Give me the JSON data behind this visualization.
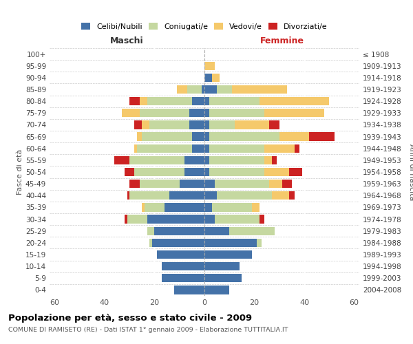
{
  "age_groups": [
    "0-4",
    "5-9",
    "10-14",
    "15-19",
    "20-24",
    "25-29",
    "30-34",
    "35-39",
    "40-44",
    "45-49",
    "50-54",
    "55-59",
    "60-64",
    "65-69",
    "70-74",
    "75-79",
    "80-84",
    "85-89",
    "90-94",
    "95-99",
    "100+"
  ],
  "birth_years": [
    "2004-2008",
    "1999-2003",
    "1994-1998",
    "1989-1993",
    "1984-1988",
    "1979-1983",
    "1974-1978",
    "1969-1973",
    "1964-1968",
    "1959-1963",
    "1954-1958",
    "1949-1953",
    "1944-1948",
    "1939-1943",
    "1934-1938",
    "1929-1933",
    "1924-1928",
    "1919-1923",
    "1914-1918",
    "1909-1913",
    "≤ 1908"
  ],
  "maschi_celibi": [
    12,
    17,
    17,
    19,
    21,
    20,
    23,
    16,
    14,
    10,
    8,
    8,
    5,
    5,
    6,
    6,
    5,
    1,
    0,
    0,
    0
  ],
  "maschi_coniugati": [
    0,
    0,
    0,
    0,
    1,
    3,
    8,
    8,
    16,
    16,
    20,
    22,
    22,
    20,
    16,
    20,
    18,
    6,
    0,
    0,
    0
  ],
  "maschi_vedovi": [
    0,
    0,
    0,
    0,
    0,
    0,
    0,
    1,
    0,
    0,
    0,
    0,
    1,
    2,
    3,
    7,
    3,
    4,
    0,
    0,
    0
  ],
  "maschi_divorziati": [
    0,
    0,
    0,
    0,
    0,
    0,
    1,
    0,
    1,
    4,
    4,
    6,
    0,
    0,
    3,
    0,
    4,
    0,
    0,
    0,
    0
  ],
  "femmine_nubili": [
    10,
    15,
    14,
    19,
    21,
    10,
    4,
    3,
    5,
    4,
    2,
    2,
    2,
    2,
    2,
    2,
    2,
    5,
    3,
    0,
    0
  ],
  "femmine_coniugate": [
    0,
    0,
    0,
    0,
    2,
    18,
    18,
    16,
    22,
    22,
    22,
    22,
    22,
    28,
    10,
    22,
    20,
    6,
    0,
    0,
    0
  ],
  "femmine_vedove": [
    0,
    0,
    0,
    0,
    0,
    0,
    0,
    3,
    7,
    5,
    10,
    3,
    12,
    12,
    14,
    24,
    28,
    22,
    3,
    4,
    0
  ],
  "femmine_divorziate": [
    0,
    0,
    0,
    0,
    0,
    0,
    2,
    0,
    2,
    4,
    5,
    2,
    2,
    10,
    4,
    0,
    0,
    0,
    0,
    0,
    0
  ],
  "color_celibi": "#4472a8",
  "color_coniugati": "#c5d8a0",
  "color_vedovi": "#f5c96b",
  "color_divorziati": "#cc2222",
  "xlim": 62,
  "xticks": [
    -60,
    -40,
    -20,
    0,
    20,
    40,
    60
  ],
  "title": "Popolazione per età, sesso e stato civile - 2009",
  "subtitle": "COMUNE DI RAMISETO (RE) - Dati ISTAT 1° gennaio 2009 - Elaborazione TUTTITALIA.IT",
  "label_maschi": "Maschi",
  "label_femmine": "Femmine",
  "ylabel_left": "Fasce di età",
  "ylabel_right": "Anni di nascita",
  "legend_labels": [
    "Celibi/Nubili",
    "Coniugati/e",
    "Vedovi/e",
    "Divorziati/e"
  ]
}
